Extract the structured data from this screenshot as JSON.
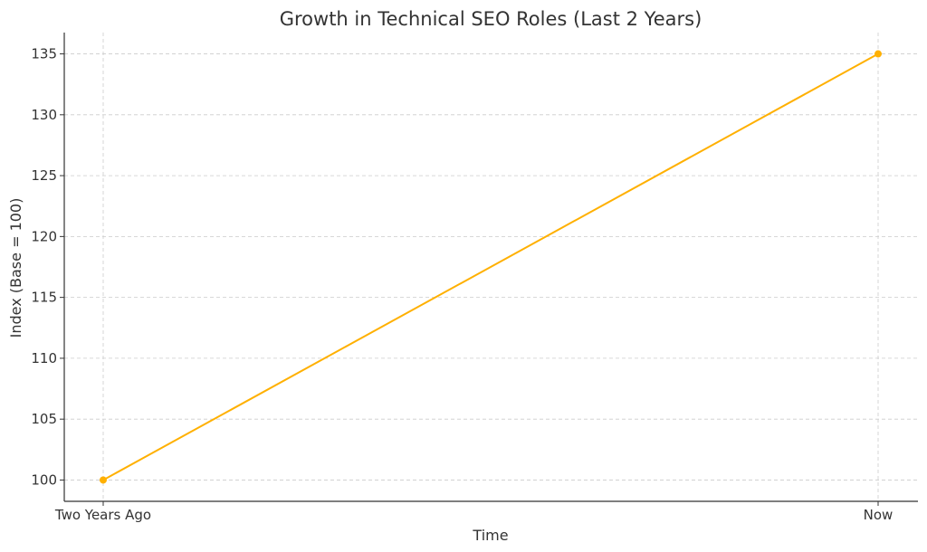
{
  "chart_data": {
    "type": "line",
    "title": "Growth in Technical SEO Roles (Last 2 Years)",
    "xlabel": "Time",
    "ylabel": "Index (Base = 100)",
    "categories": [
      "Two Years Ago",
      "Now"
    ],
    "series": [
      {
        "values": [
          100,
          135
        ],
        "color": "#FFB000"
      }
    ],
    "ylim": [
      98.25,
      136.75
    ],
    "yticks": [
      100,
      105,
      110,
      115,
      120,
      125,
      130,
      135
    ],
    "grid": true,
    "grid_style": "dashed",
    "markers": true
  }
}
